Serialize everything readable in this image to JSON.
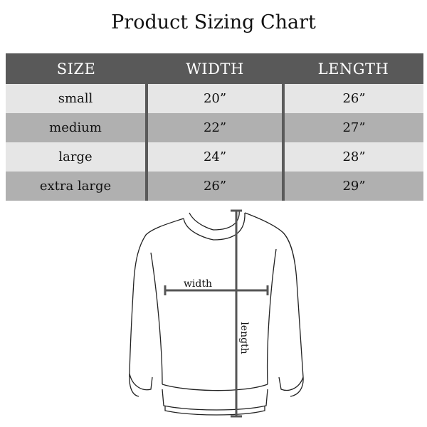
{
  "title": "Product Sizing Chart",
  "table": {
    "headers": [
      "SIZE",
      "WIDTH",
      "LENGTH"
    ],
    "rows": [
      [
        "small",
        "20”",
        "26”"
      ],
      [
        "medium",
        "22”",
        "27”"
      ],
      [
        "large",
        "24”",
        "28”"
      ],
      [
        "extra large",
        "26”",
        "29”"
      ]
    ]
  },
  "diagram": {
    "width_label": "width",
    "length_label": "length"
  },
  "colors": {
    "header_bg": "#595959",
    "row_light": "#e6e6e6",
    "row_dark": "#b0b0b0"
  }
}
